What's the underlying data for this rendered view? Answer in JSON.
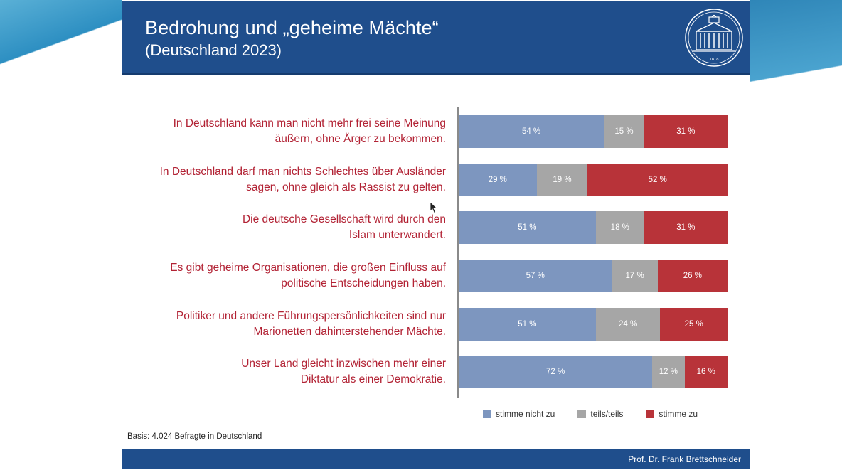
{
  "header": {
    "title": "Bedrohung und „geheime Mächte“",
    "subtitle": "(Deutschland 2023)",
    "logo_year": "1818"
  },
  "chart_data": {
    "type": "bar",
    "orientation": "horizontal",
    "stacked": true,
    "categories": [
      "In Deutschland kann man nicht mehr frei seine Meinung äußern, ohne Ärger zu bekommen.",
      "In Deutschland darf man nichts Schlechtes über Ausländer sagen, ohne gleich als Rassist zu gelten.",
      "Die deutsche Gesellschaft wird durch den Islam unterwandert.",
      "Es gibt geheime Organisationen, die großen Einfluss auf politische Entscheidungen haben.",
      "Politiker und andere Führungspersönlichkeiten sind nur Marionetten dahinterstehender Mächte.",
      "Unser Land gleicht inzwischen mehr einer Diktatur als einer Demokratie."
    ],
    "category_lines": [
      [
        "In Deutschland kann man nicht mehr frei seine Meinung",
        "äußern, ohne Ärger zu bekommen."
      ],
      [
        "In Deutschland darf man nichts Schlechtes über Ausländer",
        "sagen, ohne gleich als Rassist zu gelten."
      ],
      [
        "Die deutsche Gesellschaft wird durch den",
        "Islam unterwandert."
      ],
      [
        "Es gibt geheime Organisationen, die großen Einfluss auf",
        "politische Entscheidungen haben."
      ],
      [
        "Politiker und andere Führungspersönlichkeiten sind nur",
        "Marionetten dahinterstehender Mächte."
      ],
      [
        "Unser Land gleicht inzwischen mehr einer",
        "Diktatur als einer Demokratie."
      ]
    ],
    "series": [
      {
        "name": "stimme nicht zu",
        "color": "#7d96bf",
        "values": [
          54,
          29,
          51,
          57,
          51,
          72
        ]
      },
      {
        "name": "teils/teils",
        "color": "#a6a6a6",
        "values": [
          15,
          19,
          18,
          17,
          24,
          12
        ]
      },
      {
        "name": "stimme zu",
        "color": "#b83339",
        "values": [
          31,
          52,
          31,
          26,
          25,
          16
        ]
      }
    ],
    "value_suffix": " %",
    "xlim": [
      0,
      100
    ],
    "legend_position": "bottom",
    "grid": false
  },
  "basis": "Basis: 4.024 Befragte in Deutschland",
  "footer": {
    "author": "Prof. Dr. Frank Brettschneider"
  }
}
